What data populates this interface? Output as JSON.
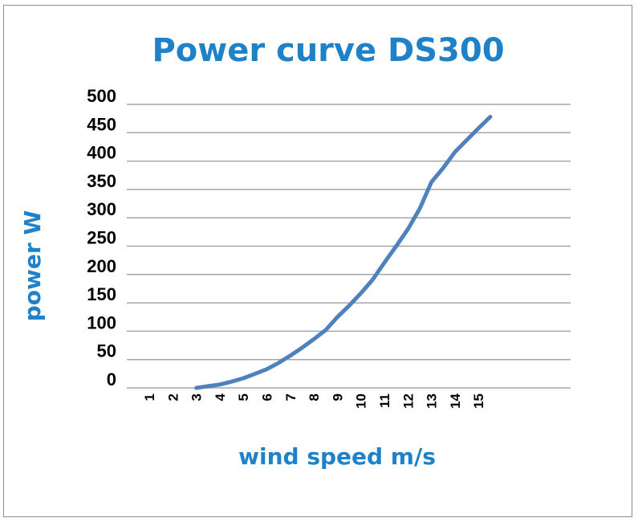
{
  "chart_data": {
    "type": "line",
    "title": "Power curve DS300",
    "xlabel": "wind speed m/s",
    "ylabel": "power W",
    "categories": [
      "1",
      "2",
      "3",
      "4",
      "5",
      "6",
      "7",
      "8",
      "9",
      "10",
      "11",
      "12",
      "13",
      "14",
      "15"
    ],
    "y_ticks": [
      "0",
      "50",
      "100",
      "150",
      "200",
      "250",
      "300",
      "350",
      "400",
      "450",
      "500"
    ],
    "ylim": [
      0,
      500
    ],
    "grid": true,
    "legend": "none",
    "series": [
      {
        "x": [
          3,
          3.5,
          4,
          4.5,
          5,
          5.5,
          6,
          6.5,
          7,
          7.5,
          8,
          8.5,
          9,
          9.5,
          10,
          10.5,
          11,
          11.5,
          12,
          12.5,
          13,
          13.5,
          14,
          14.5,
          15,
          15.5
        ],
        "values": [
          0,
          3,
          6,
          11,
          17,
          25,
          33,
          44,
          57,
          71,
          86,
          102,
          125,
          145,
          167,
          191,
          221,
          250,
          280,
          316,
          363,
          388,
          416,
          437,
          458,
          478
        ],
        "color": "#4f81bd"
      }
    ],
    "colors": {
      "title": "#1f82c8",
      "axis_title": "#1f82c8",
      "line": "#4f81bd",
      "grid": "#a6a6a6"
    }
  }
}
